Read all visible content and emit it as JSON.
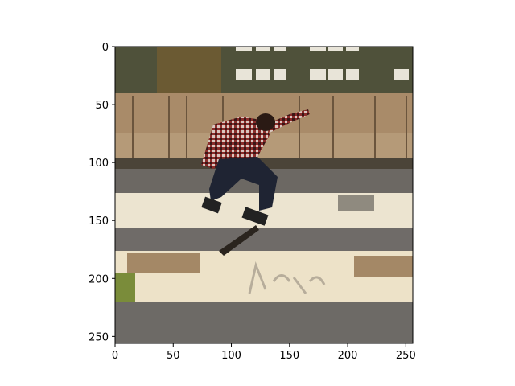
{
  "figure": {
    "subject": "skateboarder mid-air kickflip",
    "x_axis": {
      "min": 0,
      "max": 256,
      "ticks": [
        0,
        50,
        100,
        150,
        200,
        250
      ]
    },
    "y_axis": {
      "min": 0,
      "max": 256,
      "ticks": [
        0,
        50,
        100,
        150,
        200,
        250
      ]
    }
  },
  "colors": {
    "sky_building": "#5b5a3e",
    "fence": "#a88a68",
    "road": "#6e6a66",
    "ledge": "#efe7d4",
    "shirt": "#8a2c2a",
    "jeans": "#1f2433"
  }
}
